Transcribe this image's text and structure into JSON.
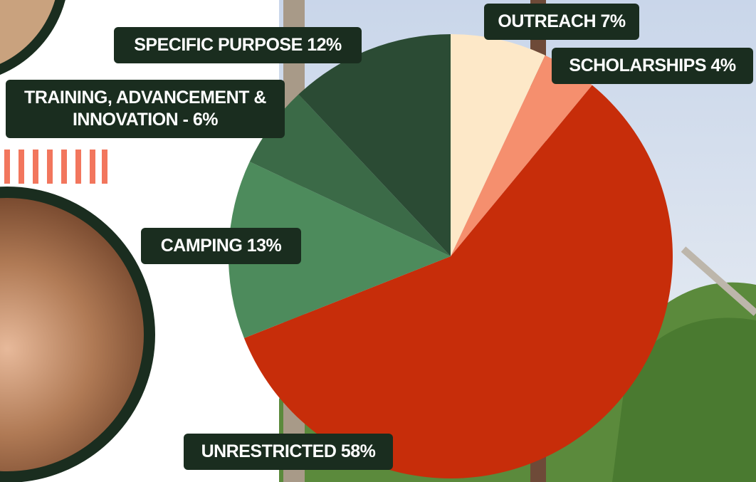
{
  "chart_data": {
    "type": "pie",
    "values": [
      7,
      4,
      58,
      13,
      6,
      12
    ],
    "value_labels": [
      "OUTREACH 7%",
      "SCHOLARSHIPS 4%",
      "UNRESTRICTED 58%",
      "CAMPING 13%",
      "TRAINING, ADVANCEMENT & INNOVATION - 6%",
      "SPECIFIC PURPOSE 12%"
    ],
    "colors": [
      "#fde8c8",
      "#f58f6e",
      "#c72d0a",
      "#4d8b5c",
      "#3b6a47",
      "#2b4b34"
    ]
  }
}
